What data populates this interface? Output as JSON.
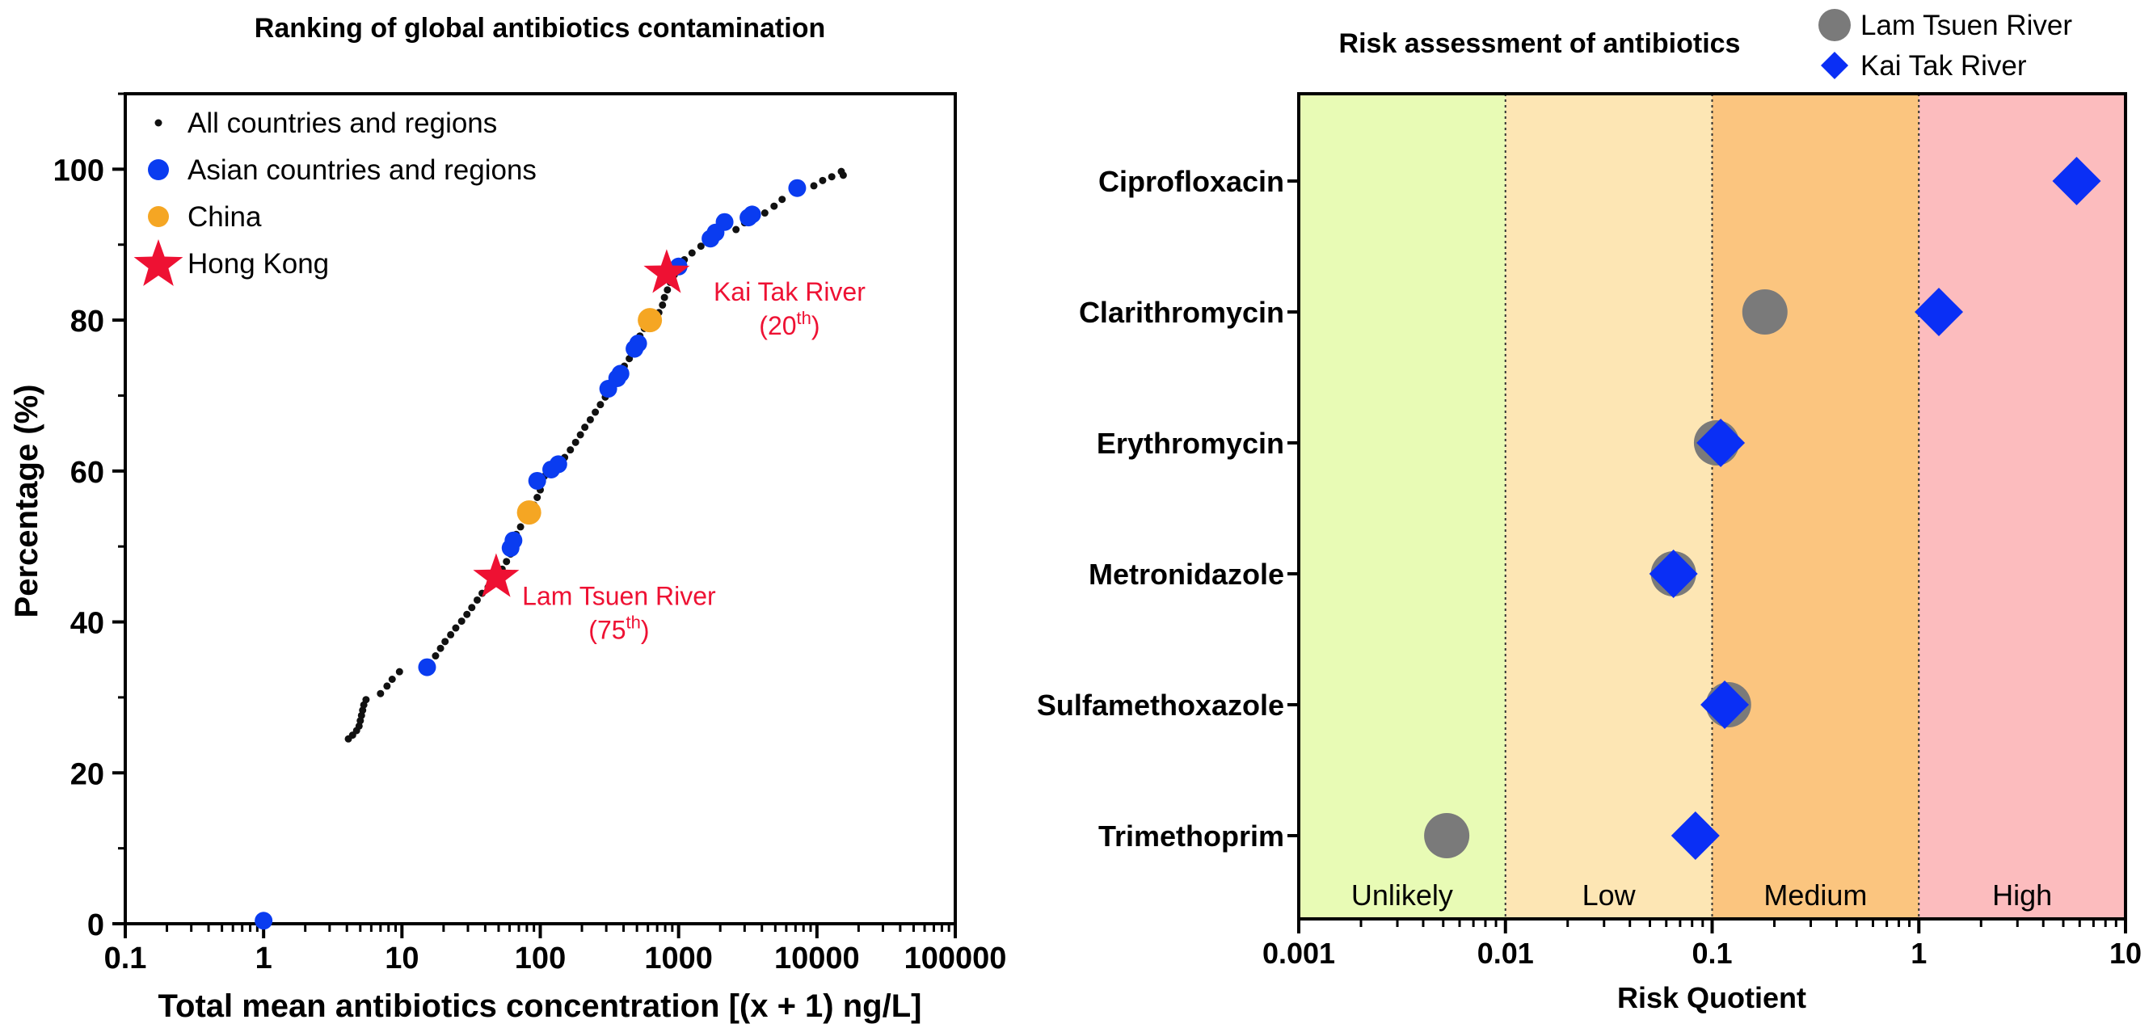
{
  "chart_data": [
    {
      "type": "scatter",
      "title": "Ranking of global antibiotics contamination",
      "xlabel": "Total mean antibiotics concentration [(x + 1) ng/L]",
      "ylabel": "Percentage (%)",
      "xscale": "log",
      "xlim": [
        0.1,
        100000
      ],
      "ylim": [
        0,
        110
      ],
      "xticks": [
        "0.1",
        "1",
        "10",
        "100",
        "1000",
        "10000",
        "100000"
      ],
      "yticks": [
        "0",
        "20",
        "40",
        "60",
        "80",
        "100"
      ],
      "legend": {
        "position": "top-left",
        "entries": [
          {
            "label": "All countries and regions",
            "marker": "small-dot",
            "color": "#111111"
          },
          {
            "label": "Asian countries and regions",
            "marker": "circle",
            "color": "#0a3cf0"
          },
          {
            "label": "China",
            "marker": "circle",
            "color": "#f5a623"
          },
          {
            "label": "Hong Kong",
            "marker": "star",
            "color": "#ee1133"
          }
        ]
      },
      "series": [
        {
          "name": "All countries and regions",
          "color": "#111111",
          "points": [
            [
              4.1,
              24.5
            ],
            [
              4.4,
              25.0
            ],
            [
              4.7,
              25.6
            ],
            [
              4.9,
              26.2
            ],
            [
              5.0,
              26.9
            ],
            [
              5.1,
              27.6
            ],
            [
              5.2,
              28.3
            ],
            [
              5.3,
              29.0
            ],
            [
              5.5,
              29.7
            ],
            [
              7.0,
              30.5
            ],
            [
              7.8,
              31.5
            ],
            [
              8.5,
              32.4
            ],
            [
              9.6,
              33.4
            ],
            [
              17.5,
              35.5
            ],
            [
              19.0,
              36.5
            ],
            [
              20.5,
              37.4
            ],
            [
              22.5,
              38.3
            ],
            [
              24.5,
              39.2
            ],
            [
              27,
              40.1
            ],
            [
              29.5,
              41.0
            ],
            [
              32,
              41.9
            ],
            [
              35,
              42.9
            ],
            [
              38,
              43.8
            ],
            [
              42,
              44.6
            ],
            [
              53,
              47.0
            ],
            [
              57,
              48.0
            ],
            [
              61,
              49.0
            ],
            [
              67,
              51.6
            ],
            [
              72,
              52.6
            ],
            [
              78,
              53.5
            ],
            [
              90,
              55.5
            ],
            [
              95,
              56.5
            ],
            [
              100,
              57.5
            ],
            [
              107,
              59.3
            ],
            [
              118,
              60.0
            ],
            [
              150,
              61.8
            ],
            [
              165,
              62.8
            ],
            [
              180,
              63.8
            ],
            [
              195,
              64.8
            ],
            [
              210,
              65.8
            ],
            [
              230,
              66.8
            ],
            [
              250,
              67.8
            ],
            [
              272,
              68.8
            ],
            [
              295,
              69.8
            ],
            [
              345,
              71.9
            ],
            [
              405,
              73.9
            ],
            [
              440,
              74.9
            ],
            [
              470,
              75.9
            ],
            [
              525,
              77.9
            ],
            [
              565,
              78.9
            ],
            [
              720,
              81.0
            ],
            [
              765,
              82.0
            ],
            [
              790,
              83.0
            ],
            [
              830,
              84.0
            ],
            [
              870,
              85.0
            ],
            [
              930,
              86.0
            ],
            [
              1100,
              88.0
            ],
            [
              1250,
              88.9
            ],
            [
              1450,
              89.8
            ],
            [
              1650,
              90.7
            ],
            [
              2600,
              92.0
            ],
            [
              3000,
              92.9
            ],
            [
              4200,
              94.2
            ],
            [
              4900,
              95.1
            ],
            [
              5600,
              96.0
            ],
            [
              9500,
              97.8
            ],
            [
              11000,
              98.5
            ],
            [
              12800,
              99.0
            ],
            [
              15000,
              99.7
            ],
            [
              15500,
              99.2
            ]
          ]
        },
        {
          "name": "Asian countries and regions",
          "color": "#0a3cf0",
          "points": [
            [
              1.0,
              0.4
            ],
            [
              15.2,
              34.0
            ],
            [
              61,
              49.8
            ],
            [
              64,
              50.8
            ],
            [
              95,
              58.7
            ],
            [
              120,
              60.2
            ],
            [
              135,
              60.9
            ],
            [
              310,
              70.9
            ],
            [
              360,
              72.3
            ],
            [
              380,
              72.9
            ],
            [
              480,
              76.2
            ],
            [
              510,
              76.9
            ],
            [
              1000,
              87.1
            ],
            [
              1700,
              90.8
            ],
            [
              1850,
              91.6
            ],
            [
              2150,
              93.0
            ],
            [
              3200,
              93.6
            ],
            [
              3400,
              94.0
            ],
            [
              7200,
              97.5
            ]
          ]
        },
        {
          "name": "China",
          "color": "#f5a623",
          "points": [
            [
              83,
              54.5
            ],
            [
              620,
              80.0
            ]
          ]
        },
        {
          "name": "Hong Kong",
          "color": "#ee1133",
          "points": [
            [
              48,
              45.9
            ],
            [
              820,
              86.2
            ]
          ]
        }
      ],
      "annotations": [
        {
          "text": "Kai Tak River",
          "rank_base": "(20",
          "rank_sup": "th",
          "rank_close": ")",
          "x": 820,
          "y": 86.2,
          "color": "#ee1133"
        },
        {
          "text": "Lam Tsuen River",
          "rank_base": "(75",
          "rank_sup": "th",
          "rank_close": ")",
          "x": 48,
          "y": 45.9,
          "color": "#ee1133"
        }
      ]
    },
    {
      "type": "scatter",
      "title": "Risk assessment of antibiotics",
      "xlabel": "Risk Quotient",
      "ylabel": "",
      "xscale": "log",
      "xlim": [
        0.001,
        10
      ],
      "xticks": [
        "0.001",
        "0.01",
        "0.1",
        "1",
        "10"
      ],
      "categories": [
        "Ciprofloxacin",
        "Clarithromycin",
        "Erythromycin",
        "Metronidazole",
        "Sulfamethoxazole",
        "Trimethoprim"
      ],
      "zones": [
        {
          "label": "Unlikely",
          "from": 0.001,
          "to": 0.01,
          "color": "#e8fbb5"
        },
        {
          "label": "Low",
          "from": 0.01,
          "to": 0.1,
          "color": "#fde6b4"
        },
        {
          "label": "Medium",
          "from": 0.1,
          "to": 1,
          "color": "#fbc57f"
        },
        {
          "label": "High",
          "from": 1,
          "to": 10,
          "color": "#fcbcbe"
        }
      ],
      "legend": {
        "position": "top-right",
        "entries": [
          {
            "label": "Lam Tsuen River",
            "marker": "circle",
            "color": "#7a7a7a"
          },
          {
            "label": "Kai Tak River",
            "marker": "diamond",
            "color": "#0a2ff5"
          }
        ]
      },
      "series": [
        {
          "name": "Lam Tsuen River",
          "marker": "circle",
          "color": "#7a7a7a",
          "values": {
            "Clarithromycin": 0.18,
            "Erythromycin": 0.105,
            "Metronidazole": 0.065,
            "Sulfamethoxazole": 0.12,
            "Trimethoprim": 0.0052
          }
        },
        {
          "name": "Kai Tak River",
          "marker": "diamond",
          "color": "#0a2ff5",
          "values": {
            "Ciprofloxacin": 5.8,
            "Clarithromycin": 1.25,
            "Erythromycin": 0.11,
            "Metronidazole": 0.065,
            "Sulfamethoxazole": 0.115,
            "Trimethoprim": 0.083
          }
        }
      ]
    }
  ]
}
